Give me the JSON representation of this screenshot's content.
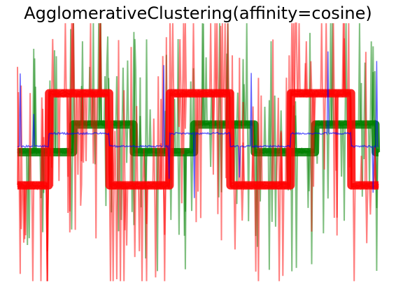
{
  "chart_data": {
    "type": "line",
    "title": "AgglomerativeClustering(affinity=cosine)",
    "xlabel": "",
    "ylabel": "",
    "axes_visible": false,
    "grid": false,
    "legend": "none",
    "xlim": [
      0,
      2000
    ],
    "ylim": [
      -3.6,
      3.6
    ],
    "description_of_series": "Three clusters of noisy waveforms overlaid with high alpha; each cluster is drawn as many translucent traces in its cluster colour.",
    "series": [
      {
        "color": "#ff0000",
        "cluster": 0,
        "waveform": "square",
        "period": 670,
        "phase": 175,
        "high": 1.6,
        "low": -0.9,
        "noise_spike_max": 3.3,
        "traces": 10
      },
      {
        "color": "#008000",
        "cluster": 1,
        "waveform": "square",
        "period": 670,
        "phase": 310,
        "high": 0.75,
        "low": 0.0,
        "noise_spike_max": 2.5,
        "traces": 8
      },
      {
        "color": "#0000ff",
        "cluster": 2,
        "waveform": "square",
        "period": 670,
        "phase": 175,
        "high": 0.55,
        "low": 0.2,
        "noise_spike_max": 1.6,
        "traces": 1
      }
    ]
  },
  "colors": {
    "background": "#ffffff",
    "title": "#000000"
  }
}
